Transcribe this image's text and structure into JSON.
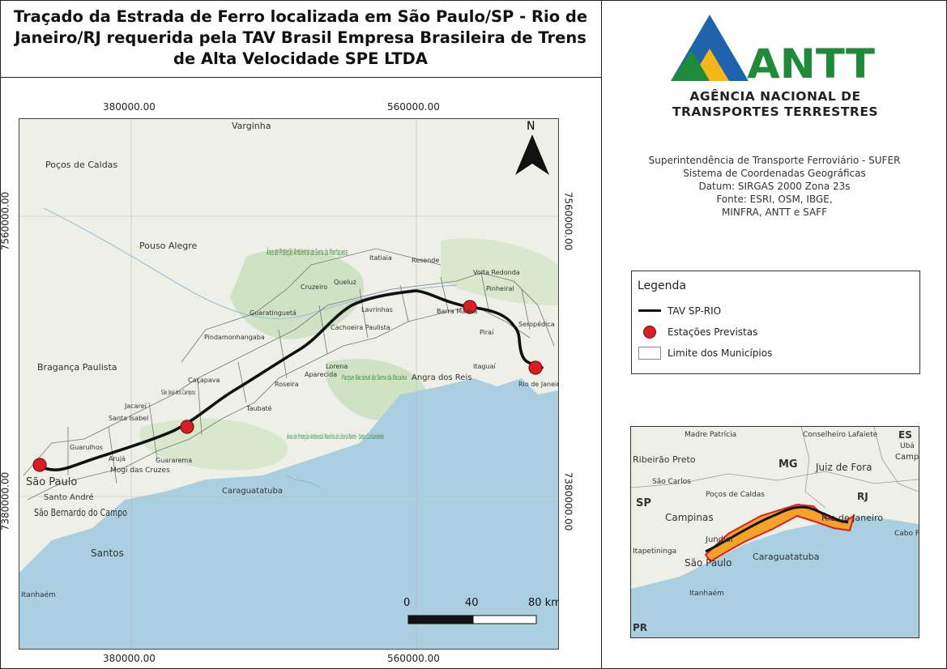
{
  "title_lines": [
    "Traçado da Estrada de Ferro localizada em São Paulo/SP - Rio de",
    "Janeiro/RJ requerida pela TAV Brasil Empresa Brasileira de Trens",
    "de Alta Velocidade SPE LTDA"
  ],
  "agency": {
    "logo_text": "ANTT",
    "name_line1": "AGÊNCIA NACIONAL DE",
    "name_line2": "TRANSPORTES TERRESTRES",
    "colors": {
      "green": "#1f8a3a",
      "blue": "#1e63ab",
      "yellow": "#f5b81a"
    }
  },
  "info": [
    "Superintendência de Transporte Ferroviário - SUFER",
    "Sistema de Coordenadas Geográficas",
    "Datum: SIRGAS 2000 Zona 23s",
    "Fonte: ESRI, OSM, IBGE,",
    "MINFRA, ANTT e SAFF"
  ],
  "legend": {
    "title": "Legenda",
    "items": [
      {
        "label": "TAV SP-RIO",
        "symbol": "line"
      },
      {
        "label": "Estações Previstas",
        "symbol": "point"
      },
      {
        "label": "Limite dos Municípios",
        "symbol": "polygon"
      }
    ]
  },
  "grid": {
    "top_x": [
      "380000.00",
      "560000.00"
    ],
    "bottom_x": [
      "380000.00",
      "560000.00"
    ],
    "left_y": [
      "7560000.00",
      "7380000.00"
    ],
    "right_y": [
      "7560000.00",
      "7380000.00"
    ]
  },
  "north_label": "N",
  "scale": {
    "labels": [
      "0",
      "40",
      "80 km"
    ]
  },
  "map_labels": [
    "Varginha",
    "Poços de Caldas",
    "Pouso Alegre",
    "Área de Proteção Ambiental da Serra da Mantiqueira",
    "Itatiaia",
    "Resende",
    "Volta Redonda",
    "Pinheiral",
    "Cruzeiro",
    "Queluz",
    "Lavrinhas",
    "Barra Mansa",
    "Guaratinguetá",
    "Cachoeira Paulista",
    "Piraí",
    "Seropédica",
    "Pindamonhangaba",
    "Lorena",
    "Aparecida",
    "Roseira",
    "Itaguaí",
    "Taubaté",
    "Caçapava",
    "São José dos Campos",
    "Parque Nacional da Serra da Bocaina",
    "Angra dos Reis",
    "Rio de Janeiro",
    "Bragança Paulista",
    "Jacareí",
    "Santa Isabel",
    "Guarulhos",
    "Arujá",
    "Mogi das Cruzes",
    "Guararema",
    "Caraguatatuba",
    "São Paulo",
    "Santo André",
    "São Bernardo do Campo",
    "Santos",
    "Área de Proteção Ambiental Marinha do Litoral Norte - Setor Cunhambebe",
    "Itanhaém"
  ],
  "inset_labels": [
    "Madre Patrícia",
    "Conselheiro Lafaiete",
    "Ubá",
    "Ribeirão Preto",
    "MG",
    "Juiz de Fora",
    "São Carlos",
    "Poços de Caldas",
    "SP",
    "Campinas",
    "RJ",
    "Rio de Janeiro",
    "Caraguatatuba",
    "São Paulo",
    "Itapetininga",
    "Itanhaém",
    "ES",
    "Campos",
    "PR",
    "Cabo Frio",
    "Jundiaí"
  ]
}
